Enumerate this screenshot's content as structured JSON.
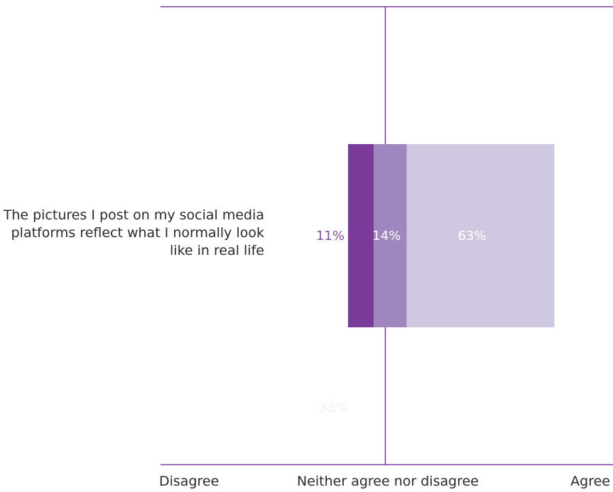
{
  "chart_data": {
    "type": "bar",
    "orientation": "horizontal",
    "stacked": true,
    "categories": [
      "The pictures I post on my social media platforms reflect what I normally look like in real life"
    ],
    "segments": [
      {
        "value": 11,
        "label": "11%",
        "color": "#7a3a9a"
      },
      {
        "value": 14,
        "label": "14%",
        "color": "#a086bf"
      },
      {
        "value": 63,
        "label": "63%",
        "color": "#d0c8e0"
      }
    ],
    "stray_label": {
      "value": 33,
      "label": "33%"
    },
    "axis_labels": {
      "left": "Disagree",
      "middle": "Neither agree nor disagree",
      "right": "Agree"
    },
    "colors": {
      "axis_line": "#7a3a9a",
      "label_11": "#8a4aa8",
      "label_light": "#ffffff",
      "text": "#2a2a2a"
    }
  }
}
